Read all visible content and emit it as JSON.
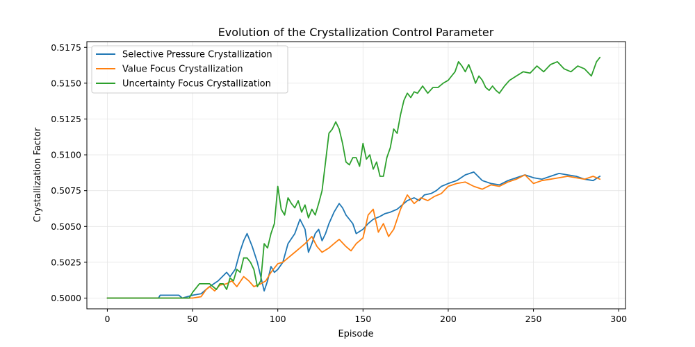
{
  "chart_data": {
    "type": "line",
    "title": "Evolution of the Crystallization Control Parameter",
    "xlabel": "Episode",
    "ylabel": "Crystallization Factor",
    "xlim": [
      -12,
      304
    ],
    "ylim": [
      0.49925,
      0.5179
    ],
    "xticks": [
      0,
      50,
      100,
      150,
      200,
      250,
      300
    ],
    "xtick_labels": [
      "0",
      "50",
      "100",
      "150",
      "200",
      "250",
      "300"
    ],
    "yticks": [
      0.5,
      0.5025,
      0.505,
      0.5075,
      0.51,
      0.5125,
      0.515,
      0.5175
    ],
    "ytick_labels": [
      "0.5000",
      "0.5025",
      "0.5050",
      "0.5075",
      "0.5100",
      "0.5125",
      "0.5150",
      "0.5175"
    ],
    "grid": true,
    "legend_position": "top-left",
    "series": [
      {
        "name": "Selective Pressure Crystallization",
        "color": "#1f77b4",
        "x": [
          0,
          10,
          20,
          30,
          31,
          40,
          42,
          44,
          50,
          55,
          60,
          65,
          70,
          72,
          75,
          78,
          80,
          82,
          85,
          88,
          90,
          92,
          94,
          96,
          98,
          100,
          103,
          106,
          110,
          113,
          116,
          118,
          120,
          122,
          124,
          126,
          128,
          130,
          133,
          136,
          138,
          140,
          142,
          144,
          146,
          150,
          153,
          156,
          158,
          160,
          163,
          166,
          170,
          173,
          176,
          180,
          183,
          186,
          190,
          193,
          196,
          200,
          205,
          210,
          215,
          220,
          225,
          230,
          235,
          240,
          245,
          250,
          255,
          260,
          265,
          270,
          275,
          280,
          285,
          289
        ],
        "y": [
          0.5,
          0.5,
          0.5,
          0.5,
          0.5002,
          0.5002,
          0.5002,
          0.5,
          0.5002,
          0.5003,
          0.5008,
          0.5012,
          0.5018,
          0.5015,
          0.502,
          0.5033,
          0.504,
          0.5045,
          0.5036,
          0.5025,
          0.5015,
          0.5005,
          0.5012,
          0.5022,
          0.5018,
          0.502,
          0.5025,
          0.5038,
          0.5045,
          0.5055,
          0.5048,
          0.5032,
          0.5038,
          0.5045,
          0.5048,
          0.504,
          0.5045,
          0.5052,
          0.506,
          0.5066,
          0.5063,
          0.5058,
          0.5055,
          0.5052,
          0.5045,
          0.5048,
          0.5052,
          0.5055,
          0.5056,
          0.5057,
          0.5059,
          0.506,
          0.5062,
          0.5065,
          0.5068,
          0.507,
          0.5068,
          0.5072,
          0.5073,
          0.5075,
          0.5078,
          0.508,
          0.5082,
          0.5086,
          0.5088,
          0.5082,
          0.508,
          0.5079,
          0.5082,
          0.5084,
          0.5086,
          0.5084,
          0.5083,
          0.5085,
          0.5087,
          0.5086,
          0.5085,
          0.5083,
          0.5082,
          0.5085
        ]
      },
      {
        "name": "Value Focus Crystallization",
        "color": "#ff7f0e",
        "x": [
          0,
          10,
          20,
          30,
          40,
          50,
          55,
          58,
          60,
          63,
          66,
          70,
          73,
          76,
          80,
          83,
          86,
          90,
          93,
          96,
          100,
          103,
          106,
          110,
          113,
          116,
          120,
          123,
          126,
          130,
          133,
          136,
          140,
          143,
          146,
          150,
          153,
          156,
          159,
          162,
          165,
          168,
          172,
          176,
          180,
          184,
          188,
          192,
          196,
          200,
          205,
          210,
          215,
          220,
          225,
          230,
          235,
          240,
          245,
          250,
          255,
          260,
          265,
          270,
          275,
          280,
          285,
          289
        ],
        "y": [
          0.5,
          0.5,
          0.5,
          0.5,
          0.5,
          0.5,
          0.5001,
          0.5006,
          0.5008,
          0.5005,
          0.5009,
          0.501,
          0.5012,
          0.5008,
          0.5015,
          0.5012,
          0.5008,
          0.501,
          0.5012,
          0.5018,
          0.5024,
          0.5025,
          0.5028,
          0.5032,
          0.5035,
          0.5038,
          0.5043,
          0.5036,
          0.5032,
          0.5035,
          0.5038,
          0.5041,
          0.5036,
          0.5033,
          0.5038,
          0.5042,
          0.5058,
          0.5062,
          0.5046,
          0.5052,
          0.5043,
          0.5048,
          0.5062,
          0.5072,
          0.5066,
          0.507,
          0.5068,
          0.5071,
          0.5073,
          0.5078,
          0.508,
          0.5081,
          0.5078,
          0.5076,
          0.5079,
          0.5078,
          0.5081,
          0.5083,
          0.5086,
          0.508,
          0.5082,
          0.5083,
          0.5084,
          0.5085,
          0.5084,
          0.5083,
          0.5085,
          0.5083
        ]
      },
      {
        "name": "Uncertainty Focus Crystallization",
        "color": "#2ca02c",
        "x": [
          0,
          10,
          20,
          30,
          40,
          48,
          50,
          54,
          56,
          60,
          62,
          64,
          66,
          68,
          70,
          72,
          74,
          76,
          78,
          80,
          82,
          84,
          86,
          88,
          90,
          92,
          94,
          96,
          98,
          100,
          102,
          104,
          106,
          108,
          110,
          112,
          114,
          116,
          118,
          120,
          122,
          124,
          126,
          128,
          130,
          132,
          134,
          136,
          138,
          140,
          142,
          144,
          146,
          148,
          150,
          152,
          154,
          156,
          158,
          160,
          162,
          164,
          166,
          168,
          170,
          172,
          174,
          176,
          178,
          180,
          182,
          185,
          188,
          191,
          194,
          197,
          200,
          202,
          204,
          206,
          208,
          210,
          212,
          214,
          216,
          218,
          220,
          222,
          224,
          226,
          228,
          230,
          233,
          236,
          240,
          244,
          248,
          252,
          256,
          260,
          264,
          268,
          272,
          276,
          280,
          284,
          287,
          289
        ],
        "y": [
          0.5,
          0.5,
          0.5,
          0.5,
          0.5,
          0.5,
          0.5004,
          0.501,
          0.501,
          0.501,
          0.5008,
          0.5006,
          0.501,
          0.501,
          0.5006,
          0.5014,
          0.5012,
          0.502,
          0.5018,
          0.5028,
          0.5028,
          0.5025,
          0.502,
          0.5008,
          0.5012,
          0.5038,
          0.5035,
          0.5045,
          0.5052,
          0.5078,
          0.5062,
          0.5058,
          0.507,
          0.5066,
          0.5063,
          0.5068,
          0.506,
          0.5065,
          0.5056,
          0.5062,
          0.5058,
          0.5066,
          0.5075,
          0.5095,
          0.5115,
          0.5118,
          0.5123,
          0.5118,
          0.5108,
          0.5095,
          0.5093,
          0.5098,
          0.5098,
          0.5092,
          0.5108,
          0.5097,
          0.51,
          0.509,
          0.5095,
          0.5085,
          0.5085,
          0.5098,
          0.5105,
          0.5118,
          0.5115,
          0.5128,
          0.5138,
          0.5143,
          0.514,
          0.5144,
          0.5143,
          0.5148,
          0.5143,
          0.5147,
          0.5147,
          0.515,
          0.5152,
          0.5155,
          0.5158,
          0.5165,
          0.5162,
          0.5158,
          0.5163,
          0.5157,
          0.515,
          0.5155,
          0.5152,
          0.5147,
          0.5145,
          0.5148,
          0.5145,
          0.5143,
          0.5148,
          0.5152,
          0.5155,
          0.5158,
          0.5157,
          0.5162,
          0.5158,
          0.5163,
          0.5165,
          0.516,
          0.5158,
          0.5162,
          0.516,
          0.5155,
          0.5165,
          0.5168
        ]
      }
    ]
  }
}
